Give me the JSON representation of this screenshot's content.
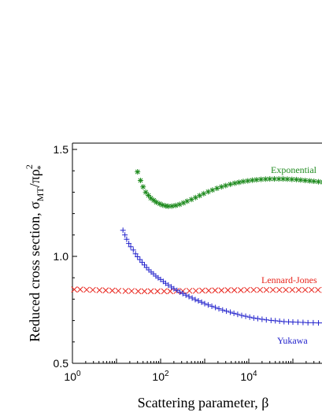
{
  "chart_data": {
    "type": "scatter",
    "xlabel": "Scattering parameter, β",
    "ylabel": {
      "main": "Reduced cross section, σ",
      "sub1": "MT",
      "mid": "/πρ",
      "sup": "2",
      "sub2": "*"
    },
    "x_scale": "log",
    "xlim": [
      1,
      1000000
    ],
    "ylim": [
      0.5,
      1.55
    ],
    "x_ticks": [
      {
        "value": 1,
        "base": "10",
        "exp": "0"
      },
      {
        "value": 100,
        "base": "10",
        "exp": "2"
      },
      {
        "value": 10000,
        "base": "10",
        "exp": "4"
      }
    ],
    "y_ticks": [
      {
        "value": 0.5,
        "label": "0.5"
      },
      {
        "value": 1.0,
        "label": "1.0"
      },
      {
        "value": 1.5,
        "label": "1.5"
      }
    ],
    "grid": false,
    "series": [
      {
        "name": "Exponential",
        "marker": "asterisk",
        "color": "#1f8b1f",
        "x": [
          30,
          35,
          40,
          46,
          53,
          60,
          70,
          80,
          95,
          110,
          130,
          150,
          180,
          220,
          270,
          330,
          400,
          500,
          620,
          770,
          950,
          1200,
          1500,
          1900,
          2400,
          3000,
          3800,
          4800,
          6000,
          7500,
          9500,
          12000,
          15000,
          19000,
          24000,
          30000,
          38000,
          48000,
          60000,
          75000,
          95000,
          120000,
          150000,
          190000,
          240000,
          300000,
          380000,
          480000,
          600000
        ],
        "y": [
          1.395,
          1.355,
          1.325,
          1.3,
          1.285,
          1.272,
          1.262,
          1.253,
          1.246,
          1.24,
          1.236,
          1.234,
          1.235,
          1.238,
          1.243,
          1.25,
          1.258,
          1.266,
          1.275,
          1.284,
          1.293,
          1.302,
          1.31,
          1.318,
          1.325,
          1.331,
          1.337,
          1.342,
          1.346,
          1.35,
          1.353,
          1.356,
          1.358,
          1.36,
          1.361,
          1.362,
          1.362,
          1.362,
          1.362,
          1.361,
          1.36,
          1.359,
          1.357,
          1.355,
          1.353,
          1.351,
          1.349,
          1.347,
          1.345
        ]
      },
      {
        "name": "Lennard-Jones",
        "marker": "x",
        "color": "#e8241c",
        "x": [
          1.1,
          1.5,
          2.1,
          2.9,
          4.1,
          5.7,
          8,
          11,
          16,
          22,
          31,
          43,
          60,
          85,
          120,
          165,
          230,
          320,
          450,
          630,
          880,
          1230,
          1720,
          2400,
          3360,
          4700,
          6600,
          9200,
          12900,
          18000,
          25200,
          35300,
          49400,
          69200,
          96900,
          135600,
          189900,
          265800,
          372100,
          520900,
          729300
        ],
        "y": [
          0.845,
          0.845,
          0.844,
          0.843,
          0.842,
          0.841,
          0.84,
          0.839,
          0.838,
          0.838,
          0.837,
          0.837,
          0.837,
          0.837,
          0.837,
          0.837,
          0.838,
          0.838,
          0.839,
          0.839,
          0.84,
          0.84,
          0.841,
          0.841,
          0.842,
          0.842,
          0.842,
          0.843,
          0.843,
          0.843,
          0.843,
          0.843,
          0.843,
          0.843,
          0.843,
          0.843,
          0.843,
          0.843,
          0.843,
          0.843,
          0.843
        ]
      },
      {
        "name": "Yukawa",
        "marker": "plus",
        "color": "#2222cc",
        "x": [
          14,
          15.5,
          17,
          19,
          21,
          24,
          27,
          30,
          34,
          38,
          43,
          48,
          54,
          61,
          69,
          78,
          88,
          100,
          115,
          130,
          150,
          175,
          200,
          235,
          275,
          320,
          375,
          440,
          520,
          610,
          720,
          850,
          1000,
          1200,
          1450,
          1750,
          2100,
          2550,
          3100,
          3800,
          4600,
          5600,
          6900,
          8500,
          10500,
          13000,
          16000,
          20000,
          25000,
          32000,
          40000,
          50000,
          63000,
          80000,
          100000,
          130000,
          170000,
          220000,
          290000,
          380000,
          500000,
          650000
        ],
        "y": [
          1.122,
          1.1,
          1.08,
          1.06,
          1.045,
          1.03,
          1.012,
          0.998,
          0.985,
          0.972,
          0.96,
          0.948,
          0.937,
          0.927,
          0.918,
          0.908,
          0.9,
          0.892,
          0.883,
          0.874,
          0.866,
          0.857,
          0.849,
          0.841,
          0.833,
          0.826,
          0.819,
          0.812,
          0.805,
          0.798,
          0.792,
          0.786,
          0.779,
          0.773,
          0.767,
          0.761,
          0.755,
          0.749,
          0.744,
          0.739,
          0.734,
          0.729,
          0.724,
          0.72,
          0.716,
          0.712,
          0.709,
          0.706,
          0.703,
          0.701,
          0.699,
          0.697,
          0.695,
          0.694,
          0.693,
          0.692,
          0.691,
          0.69,
          0.69,
          0.689,
          0.689,
          0.689
        ]
      }
    ],
    "annotations": [
      {
        "text": "Exponential",
        "series": "Exponential"
      },
      {
        "text": "Lennard-Jones",
        "series": "Lennard-Jones"
      },
      {
        "text": "Yukawa",
        "series": "Yukawa"
      }
    ]
  }
}
